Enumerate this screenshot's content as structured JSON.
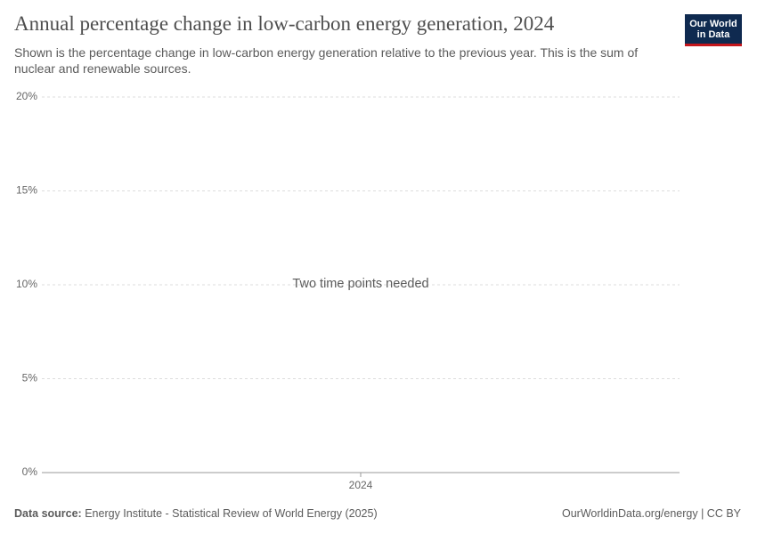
{
  "chart_data": {
    "type": "line",
    "title": "Annual percentage change in low-carbon energy generation, 2024",
    "subtitle": "Shown is the percentage change in low-carbon energy generation relative to the previous year. This is the sum of nuclear and renewable sources.",
    "annotation": "Two time points needed",
    "categories": [
      "2024"
    ],
    "ylim": [
      0,
      20
    ],
    "yticks": [
      {
        "value": 0,
        "label": "0%"
      },
      {
        "value": 5,
        "label": "5%"
      },
      {
        "value": 10,
        "label": "10%"
      },
      {
        "value": 15,
        "label": "15%"
      },
      {
        "value": 20,
        "label": "20%"
      }
    ],
    "grid": true,
    "source_label": "Data source:",
    "source": "Energy Institute - Statistical Review of World Energy (2025)",
    "credit": "OurWorldinData.org/energy | CC BY",
    "logo": [
      "Our World",
      "in Data"
    ]
  }
}
